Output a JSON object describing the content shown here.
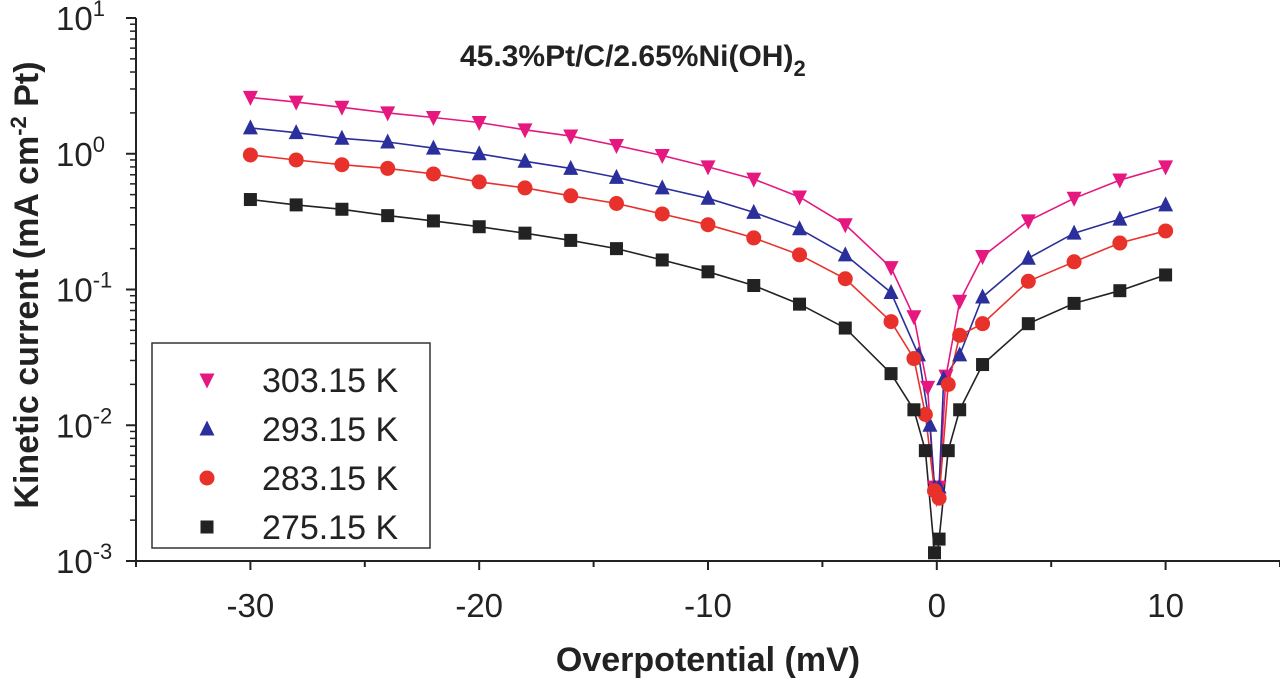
{
  "chart_data": {
    "type": "scatter",
    "title": {
      "base": "45.3%Pt/C/2.65%Ni(OH)",
      "sub": "2"
    },
    "xlabel": "Overpotential (mV)",
    "ylabel": {
      "part1": "Kinetic current (mA cm",
      "sup": "-2",
      "part2": " Pt)"
    },
    "xlim": [
      -35,
      15
    ],
    "ylim_log10": [
      -3,
      1
    ],
    "yscale": "log",
    "x_ticks": [
      "-30",
      "-20",
      "-10",
      "0",
      "10"
    ],
    "x_tick_values": [
      -30,
      -20,
      -10,
      0,
      10
    ],
    "y_ticks": [
      {
        "value": -3,
        "base": "10",
        "exp": "-3"
      },
      {
        "value": -2,
        "base": "10",
        "exp": "-2"
      },
      {
        "value": -1,
        "base": "10",
        "exp": "-1"
      },
      {
        "value": 0,
        "base": "10",
        "exp": "0"
      },
      {
        "value": 1,
        "base": "10",
        "exp": "1"
      }
    ],
    "legend_position": "bottom-left",
    "series": [
      {
        "name": "303.15 K",
        "marker": "triangle-down",
        "color": "#e6177f",
        "points": [
          [
            -30,
            2.6
          ],
          [
            -28,
            2.4
          ],
          [
            -26,
            2.2
          ],
          [
            -24,
            2.0
          ],
          [
            -22,
            1.85
          ],
          [
            -20,
            1.7
          ],
          [
            -18,
            1.5
          ],
          [
            -16,
            1.35
          ],
          [
            -14,
            1.15
          ],
          [
            -12,
            0.97
          ],
          [
            -10,
            0.8
          ],
          [
            -8,
            0.65
          ],
          [
            -6,
            0.48
          ],
          [
            -4,
            0.3
          ],
          [
            -2,
            0.145
          ],
          [
            -1,
            0.063
          ],
          [
            -0.4,
            0.019
          ],
          [
            -0.1,
            0.0035
          ],
          [
            0.1,
            0.0035
          ],
          [
            0.4,
            0.023
          ],
          [
            1,
            0.082
          ],
          [
            2,
            0.175
          ],
          [
            4,
            0.32
          ],
          [
            6,
            0.47
          ],
          [
            8,
            0.64
          ],
          [
            10,
            0.8
          ]
        ]
      },
      {
        "name": "293.15 K",
        "marker": "triangle-up",
        "color": "#2b2f9c",
        "points": [
          [
            -30,
            1.55
          ],
          [
            -28,
            1.43
          ],
          [
            -26,
            1.3
          ],
          [
            -24,
            1.22
          ],
          [
            -22,
            1.1
          ],
          [
            -20,
            1.0
          ],
          [
            -18,
            0.88
          ],
          [
            -16,
            0.78
          ],
          [
            -14,
            0.67
          ],
          [
            -12,
            0.56
          ],
          [
            -10,
            0.47
          ],
          [
            -8,
            0.37
          ],
          [
            -6,
            0.28
          ],
          [
            -4,
            0.18
          ],
          [
            -2,
            0.095
          ],
          [
            -0.8,
            0.033
          ],
          [
            -0.3,
            0.01
          ],
          [
            -0.1,
            0.0035
          ],
          [
            0.1,
            0.0035
          ],
          [
            0.3,
            0.022
          ],
          [
            1,
            0.033
          ],
          [
            2,
            0.088
          ],
          [
            4,
            0.17
          ],
          [
            6,
            0.26
          ],
          [
            8,
            0.33
          ],
          [
            10,
            0.42
          ]
        ]
      },
      {
        "name": "283.15 K",
        "marker": "circle",
        "color": "#e8312b",
        "points": [
          [
            -30,
            0.98
          ],
          [
            -28,
            0.9
          ],
          [
            -26,
            0.83
          ],
          [
            -24,
            0.78
          ],
          [
            -22,
            0.71
          ],
          [
            -20,
            0.62
          ],
          [
            -18,
            0.56
          ],
          [
            -16,
            0.49
          ],
          [
            -14,
            0.43
          ],
          [
            -12,
            0.36
          ],
          [
            -10,
            0.3
          ],
          [
            -8,
            0.24
          ],
          [
            -6,
            0.18
          ],
          [
            -4,
            0.12
          ],
          [
            -2,
            0.058
          ],
          [
            -1,
            0.031
          ],
          [
            -0.5,
            0.012
          ],
          [
            -0.1,
            0.0033
          ],
          [
            0.1,
            0.0029
          ],
          [
            0.5,
            0.02
          ],
          [
            1,
            0.046
          ],
          [
            2,
            0.056
          ],
          [
            4,
            0.115
          ],
          [
            6,
            0.16
          ],
          [
            8,
            0.22
          ],
          [
            10,
            0.27
          ]
        ]
      },
      {
        "name": "275.15 K",
        "marker": "square",
        "color": "#222222",
        "points": [
          [
            -30,
            0.46
          ],
          [
            -28,
            0.42
          ],
          [
            -26,
            0.39
          ],
          [
            -24,
            0.35
          ],
          [
            -22,
            0.32
          ],
          [
            -20,
            0.29
          ],
          [
            -18,
            0.26
          ],
          [
            -16,
            0.23
          ],
          [
            -14,
            0.2
          ],
          [
            -12,
            0.165
          ],
          [
            -10,
            0.135
          ],
          [
            -8,
            0.107
          ],
          [
            -6,
            0.078
          ],
          [
            -4,
            0.052
          ],
          [
            -2,
            0.024
          ],
          [
            -1,
            0.013
          ],
          [
            -0.5,
            0.0065
          ],
          [
            -0.1,
            0.00115
          ],
          [
            0.1,
            0.00145
          ],
          [
            0.5,
            0.0065
          ],
          [
            1,
            0.013
          ],
          [
            2,
            0.028
          ],
          [
            4,
            0.056
          ],
          [
            6,
            0.079
          ],
          [
            8,
            0.098
          ],
          [
            10,
            0.128
          ]
        ]
      }
    ]
  }
}
